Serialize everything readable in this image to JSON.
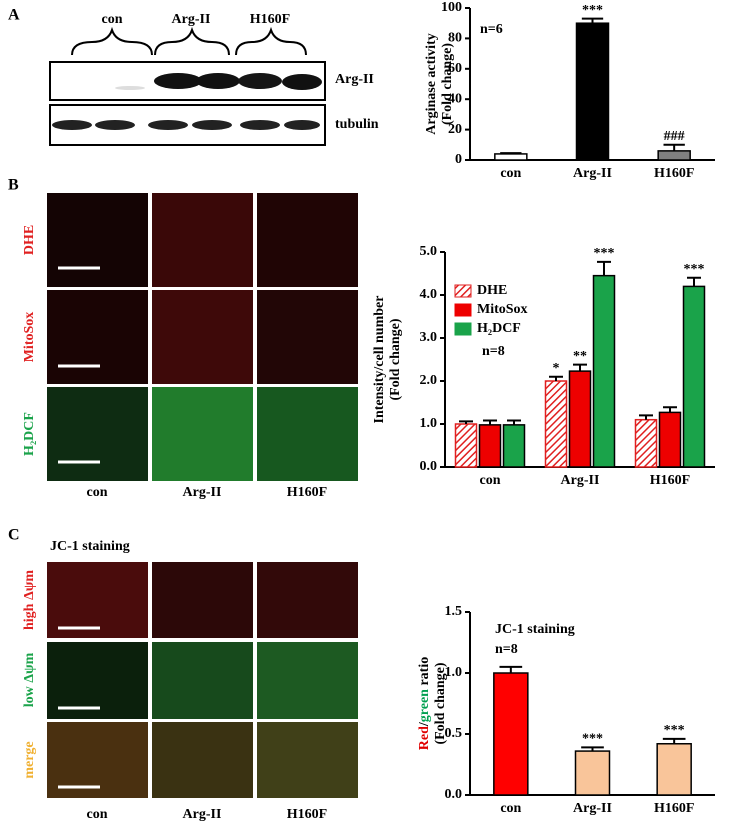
{
  "panel_labels": [
    "A",
    "B",
    "C"
  ],
  "blot": {
    "groups": [
      "con",
      "Arg-II",
      "H160F"
    ],
    "rows": [
      "Arg-II",
      "tubulin"
    ]
  },
  "images_b": {
    "rows": [
      "DHE",
      "MitoSox",
      "H₂DCF"
    ],
    "columns": [
      "con",
      "Arg-II",
      "H160F"
    ]
  },
  "images_c": {
    "title": "JC-1 staining",
    "rows": [
      "high Δψm",
      "low Δψm",
      "merge"
    ],
    "columns": [
      "con",
      "Arg-II",
      "H160F"
    ]
  },
  "chart_data": [
    {
      "type": "bar",
      "ylabel": [
        "Arginase activity",
        "(Fold change)"
      ],
      "categories": [
        "con",
        "Arg-II",
        "H160F"
      ],
      "values": [
        4,
        90,
        6
      ],
      "errors": [
        0.5,
        3,
        4
      ],
      "colors": [
        "#ffffff",
        "#000000",
        "#808080"
      ],
      "ylim": [
        0,
        100
      ],
      "yticks": [
        0,
        20,
        40,
        60,
        80,
        100
      ],
      "annotations": [
        "n=6",
        "***",
        "###"
      ]
    },
    {
      "type": "bar",
      "ylabel": [
        "Intensity/cell number",
        "(Fold change)"
      ],
      "categories": [
        "con",
        "Arg-II",
        "H160F"
      ],
      "series": [
        {
          "name": "DHE",
          "color": "#e02020",
          "pattern": "hatch",
          "values": [
            1.0,
            2.0,
            1.1
          ],
          "errors": [
            0.06,
            0.1,
            0.1
          ]
        },
        {
          "name": "MitoSox",
          "color": "#ee0000",
          "values": [
            0.98,
            2.23,
            1.27
          ],
          "errors": [
            0.1,
            0.15,
            0.12
          ]
        },
        {
          "name": "H₂DCF",
          "color": "#1aa34a",
          "values": [
            0.98,
            4.45,
            4.2
          ],
          "errors": [
            0.1,
            0.32,
            0.2
          ]
        }
      ],
      "ylim": [
        0,
        5
      ],
      "yticks": [
        {
          "value": 0,
          "label": "0.0"
        },
        {
          "value": 1,
          "label": "1.0"
        },
        {
          "value": 2,
          "label": "2.0"
        },
        {
          "value": 3,
          "label": "3.0"
        },
        {
          "value": 4,
          "label": "4.0"
        },
        {
          "value": 5,
          "label": "5.0"
        }
      ],
      "legend": "upper left",
      "annotations": [
        "n=8",
        "*",
        "**",
        "***",
        "***"
      ]
    },
    {
      "type": "bar",
      "ylabel": [
        [
          {
            "text": "Red",
            "color": "#e00000"
          },
          {
            "text": "/"
          },
          {
            "text": "green",
            "color": "#00a050"
          },
          {
            "text": " ratio"
          }
        ],
        "(Fold change)"
      ],
      "categories": [
        "con",
        "Arg-II",
        "H160F"
      ],
      "values": [
        1.0,
        0.36,
        0.42
      ],
      "errors": [
        0.05,
        0.03,
        0.04
      ],
      "colors": [
        "#ff0000",
        "#f9c59a",
        "#f9c59a"
      ],
      "ylim": [
        0,
        1.5
      ],
      "yticks": [
        {
          "value": 0,
          "label": "0.0"
        },
        0.5,
        {
          "value": 1,
          "label": "1.0"
        },
        1.5
      ],
      "annotations": [
        "JC-1 staining",
        "n=8",
        "***",
        "***"
      ]
    }
  ]
}
